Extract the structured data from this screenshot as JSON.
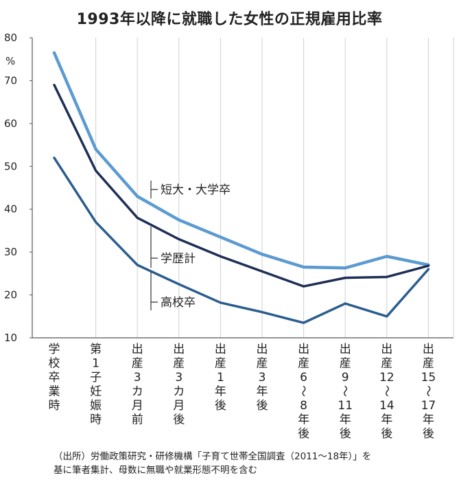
{
  "chart_data": {
    "type": "line",
    "title": "1993年以降に就職した女性の正規雇用比率",
    "unit": "%",
    "ylim": [
      10,
      80
    ],
    "yticks": [
      10,
      20,
      30,
      40,
      50,
      60,
      70,
      80
    ],
    "grid": "vertical",
    "categories": [
      "学校卒業時",
      "第1子妊娠時",
      "出産3カ月前",
      "出産3カ月後",
      "出産1年後",
      "出産3年後",
      "出産6〜8年後",
      "出産9〜11年後",
      "出産12〜14年後",
      "出産15〜17年後"
    ],
    "category_lines": [
      [
        "学",
        "校",
        "卒",
        "業",
        "時"
      ],
      [
        "第",
        "1",
        "子",
        "妊",
        "娠",
        "時"
      ],
      [
        "出",
        "産",
        "3",
        "カ",
        "月",
        "前"
      ],
      [
        "出",
        "産",
        "3",
        "カ",
        "月",
        "後"
      ],
      [
        "出",
        "産",
        "1",
        "年",
        "後"
      ],
      [
        "出",
        "産",
        "3",
        "年",
        "後"
      ],
      [
        "出",
        "産",
        "6",
        "〜",
        "8",
        "年",
        "後"
      ],
      [
        "出",
        "産",
        "9",
        "〜",
        "11",
        "年",
        "後"
      ],
      [
        "出",
        "産",
        "12",
        "〜",
        "14",
        "年",
        "後"
      ],
      [
        "出",
        "産",
        "15",
        "〜",
        "17",
        "年",
        "後"
      ]
    ],
    "series": [
      {
        "name": "短大・大学卒",
        "color": "#5b9bd1",
        "values": [
          76.5,
          54,
          43,
          37.5,
          33.5,
          29.5,
          26.5,
          26.3,
          29,
          27
        ]
      },
      {
        "name": "学歴計",
        "color": "#1e2f55",
        "values": [
          69,
          49,
          38,
          33,
          29,
          25.5,
          22,
          24,
          24.2,
          26.8
        ]
      },
      {
        "name": "高校卒",
        "color": "#2a5d8f",
        "values": [
          52,
          37,
          27,
          22.5,
          18.2,
          16,
          13.5,
          18,
          15,
          26
        ]
      }
    ],
    "source": [
      "（出所）労働政策研究・研修機構「子育て世帯全国調査（2011〜18年）」を",
      "基に筆者集計、母数に無職や就業形態不明を含む"
    ]
  }
}
